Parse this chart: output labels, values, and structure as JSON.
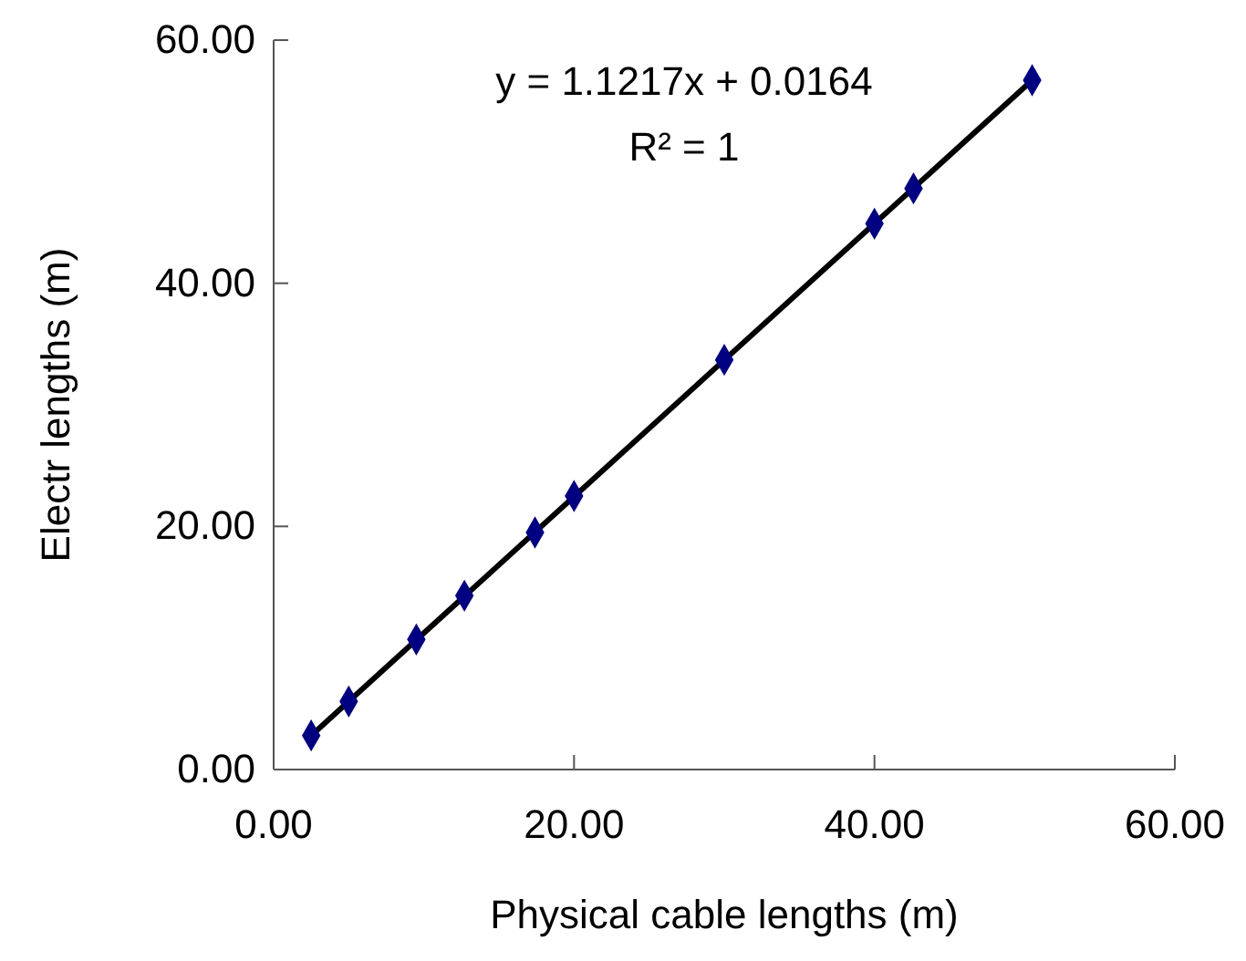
{
  "chart_data": {
    "type": "scatter",
    "xlabel": "Physical cable lengths (m)",
    "ylabel": "Electr lengths (m)",
    "xlim": [
      0,
      60
    ],
    "ylim": [
      0,
      60
    ],
    "xticks": [
      {
        "value": 0,
        "label": "0.00"
      },
      {
        "value": 20,
        "label": "20.00"
      },
      {
        "value": 40,
        "label": "40.00"
      },
      {
        "value": 60,
        "label": "60.00"
      }
    ],
    "yticks": [
      {
        "value": 0,
        "label": "0.00"
      },
      {
        "value": 20,
        "label": "20.00"
      },
      {
        "value": 40,
        "label": "40.00"
      },
      {
        "value": 60,
        "label": "60.00"
      }
    ],
    "grid": false,
    "marker": "diamond",
    "annotations": [
      "y = 1.1217x + 0.0164",
      "R² = 1"
    ],
    "series": [
      {
        "type": "line",
        "color": "#000000",
        "x": [
          2.5,
          50.5
        ],
        "values": [
          2.8,
          56.7
        ],
        "marker": "none",
        "line_style": "solid"
      },
      {
        "color": "#000080",
        "x": [
          2.5,
          5,
          9.5,
          12.7,
          17.4,
          20,
          30,
          40,
          42.6,
          50.5
        ],
        "values": [
          2.8,
          5.6,
          10.7,
          14.3,
          19.5,
          22.5,
          33.7,
          44.9,
          47.8,
          56.7
        ]
      }
    ]
  }
}
